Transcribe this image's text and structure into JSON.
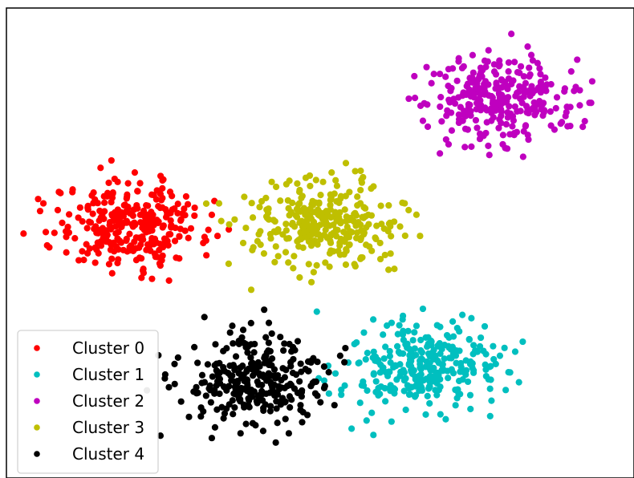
{
  "chart_data": {
    "type": "scatter",
    "title": "",
    "xlabel": "",
    "ylabel": "",
    "xlim": [
      -11,
      11
    ],
    "ylim": [
      -10,
      10
    ],
    "axes_visible": false,
    "grid": false,
    "legend_position": "lower left",
    "series": [
      {
        "name": "Cluster 0",
        "color": "#ff0000",
        "center": [
          -6.6,
          0.8
        ],
        "spread": [
          1.3,
          0.9
        ],
        "points": [
          [
            -6.6,
            0.8
          ],
          [
            -7.2,
            1.3
          ],
          [
            -5.9,
            0.2
          ],
          [
            -6.1,
            1.6
          ],
          [
            -7.5,
            0.4
          ],
          [
            -5.4,
            1.1
          ],
          [
            -6.9,
            -0.3
          ],
          [
            -8.1,
            0.9
          ],
          [
            -4.9,
            0.6
          ],
          [
            -6.4,
            2.2
          ],
          [
            -7.8,
            1.7
          ],
          [
            -5.7,
            -0.6
          ],
          [
            -6.8,
            0.1
          ],
          [
            -8.6,
            0.2
          ],
          [
            -4.4,
            1.5
          ],
          [
            -6.2,
            -1.1
          ],
          [
            -7.1,
            2.6
          ],
          [
            -5.2,
            2.0
          ],
          [
            -9.2,
            1.4
          ],
          [
            -4.1,
            0.0
          ],
          [
            -6.0,
            0.5
          ],
          [
            -7.4,
            -0.9
          ],
          [
            -8.9,
            -0.4
          ],
          [
            -5.5,
            2.7
          ],
          [
            -3.8,
            1.2
          ],
          [
            -6.5,
            3.0
          ],
          [
            -10.4,
            0.4
          ],
          [
            -3.6,
            0.3
          ],
          [
            -7.7,
            3.2
          ],
          [
            -5.3,
            -1.6
          ]
        ]
      },
      {
        "name": "Cluster 1",
        "color": "#00bfbf",
        "center": [
          3.5,
          -5.3
        ],
        "spread": [
          1.3,
          0.9
        ],
        "points": [
          [
            3.5,
            -5.3
          ],
          [
            2.8,
            -4.7
          ],
          [
            4.2,
            -5.8
          ],
          [
            3.1,
            -6.1
          ],
          [
            4.6,
            -4.9
          ],
          [
            2.3,
            -5.5
          ],
          [
            3.9,
            -4.2
          ],
          [
            2.6,
            -6.4
          ],
          [
            5.1,
            -5.6
          ],
          [
            3.3,
            -3.8
          ],
          [
            1.9,
            -4.9
          ],
          [
            4.8,
            -6.6
          ],
          [
            3.0,
            -7.1
          ],
          [
            5.6,
            -4.4
          ],
          [
            1.5,
            -5.9
          ],
          [
            4.1,
            -3.5
          ],
          [
            2.2,
            -3.9
          ],
          [
            5.9,
            -5.8
          ],
          [
            3.7,
            -7.3
          ],
          [
            1.2,
            -4.3
          ],
          [
            6.3,
            -4.8
          ],
          [
            2.9,
            -3.1
          ],
          [
            4.4,
            -7.5
          ],
          [
            6.6,
            -5.5
          ],
          [
            1.4,
            -6.8
          ],
          [
            3.6,
            -2.8
          ],
          [
            7.1,
            -4.2
          ],
          [
            1.1,
            -7.9
          ],
          [
            5.3,
            -3.2
          ],
          [
            2.5,
            -7.6
          ]
        ]
      },
      {
        "name": "Cluster 2",
        "color": "#bf00bf",
        "center": [
          6.3,
          6.1
        ],
        "spread": [
          1.3,
          0.9
        ],
        "points": [
          [
            6.3,
            6.1
          ],
          [
            5.7,
            6.6
          ],
          [
            6.9,
            5.6
          ],
          [
            6.0,
            5.2
          ],
          [
            7.2,
            6.8
          ],
          [
            5.2,
            5.9
          ],
          [
            6.6,
            7.3
          ],
          [
            5.5,
            4.9
          ],
          [
            7.6,
            5.9
          ],
          [
            6.1,
            7.6
          ],
          [
            4.8,
            6.9
          ],
          [
            7.9,
            6.5
          ],
          [
            5.0,
            5.2
          ],
          [
            6.8,
            4.6
          ],
          [
            4.5,
            7.4
          ],
          [
            8.3,
            6.2
          ],
          [
            5.9,
            8.2
          ],
          [
            7.4,
            8.0
          ],
          [
            4.2,
            5.8
          ],
          [
            8.6,
            5.4
          ],
          [
            6.4,
            4.2
          ],
          [
            3.9,
            6.8
          ],
          [
            8.8,
            7.3
          ],
          [
            5.3,
            4.1
          ],
          [
            7.3,
            4.4
          ],
          [
            3.6,
            5.2
          ],
          [
            9.1,
            6.5
          ],
          [
            6.7,
            8.9
          ],
          [
            3.3,
            7.1
          ],
          [
            4.5,
            4.2
          ]
        ]
      },
      {
        "name": "Cluster 3",
        "color": "#bfbf00",
        "center": [
          0.2,
          0.9
        ],
        "spread": [
          1.3,
          0.9
        ],
        "points": [
          [
            0.2,
            0.9
          ],
          [
            -0.5,
            1.4
          ],
          [
            0.9,
            0.4
          ],
          [
            -0.2,
            0.1
          ],
          [
            1.3,
            1.6
          ],
          [
            -0.9,
            0.7
          ],
          [
            0.5,
            2.1
          ],
          [
            -0.6,
            -0.2
          ],
          [
            1.7,
            0.8
          ],
          [
            0.1,
            2.6
          ],
          [
            -1.4,
            1.8
          ],
          [
            2.1,
            0.0
          ],
          [
            -1.1,
            0.2
          ],
          [
            0.7,
            -0.5
          ],
          [
            -1.8,
            1.0
          ],
          [
            2.4,
            1.6
          ],
          [
            0.4,
            3.0
          ],
          [
            1.5,
            2.8
          ],
          [
            -2.1,
            0.5
          ],
          [
            2.8,
            0.7
          ],
          [
            -0.4,
            -0.9
          ],
          [
            -2.4,
            1.7
          ],
          [
            3.1,
            1.4
          ],
          [
            1.2,
            -0.9
          ],
          [
            -2.7,
            0.0
          ],
          [
            3.5,
            0.3
          ],
          [
            -1.7,
            2.6
          ],
          [
            0.9,
            3.4
          ],
          [
            -3.0,
            1.0
          ],
          [
            2.6,
            -1.1
          ]
        ]
      },
      {
        "name": "Cluster 4",
        "color": "#000000",
        "center": [
          -2.2,
          -5.9
        ],
        "spread": [
          1.3,
          0.9
        ],
        "points": [
          [
            -2.2,
            -5.9
          ],
          [
            -2.8,
            -5.3
          ],
          [
            -1.6,
            -6.4
          ],
          [
            -2.5,
            -6.7
          ],
          [
            -1.2,
            -5.4
          ],
          [
            -3.2,
            -6.1
          ],
          [
            -1.9,
            -4.8
          ],
          [
            -3.0,
            -7.0
          ],
          [
            -0.9,
            -6.2
          ],
          [
            -2.3,
            -4.3
          ],
          [
            -3.6,
            -5.5
          ],
          [
            -0.6,
            -7.2
          ],
          [
            -2.6,
            -7.7
          ],
          [
            -0.3,
            -5.0
          ],
          [
            -4.0,
            -6.5
          ],
          [
            -1.4,
            -4.0
          ],
          [
            -3.4,
            -4.6
          ],
          [
            -0.1,
            -6.5
          ],
          [
            -2.0,
            -8.0
          ],
          [
            -4.3,
            -5.1
          ],
          [
            0.3,
            -5.5
          ],
          [
            -2.7,
            -3.7
          ],
          [
            -1.1,
            -8.1
          ],
          [
            0.5,
            -6.9
          ],
          [
            -4.6,
            -7.4
          ],
          [
            -1.8,
            -3.4
          ],
          [
            -5.1,
            -6.0
          ],
          [
            -3.8,
            -8.3
          ],
          [
            0.7,
            -4.8
          ],
          [
            -5.6,
            -8.2
          ]
        ]
      }
    ]
  },
  "legend": {
    "items": [
      {
        "label": "Cluster 0"
      },
      {
        "label": "Cluster 1"
      },
      {
        "label": "Cluster 2"
      },
      {
        "label": "Cluster 3"
      },
      {
        "label": "Cluster 4"
      }
    ]
  }
}
